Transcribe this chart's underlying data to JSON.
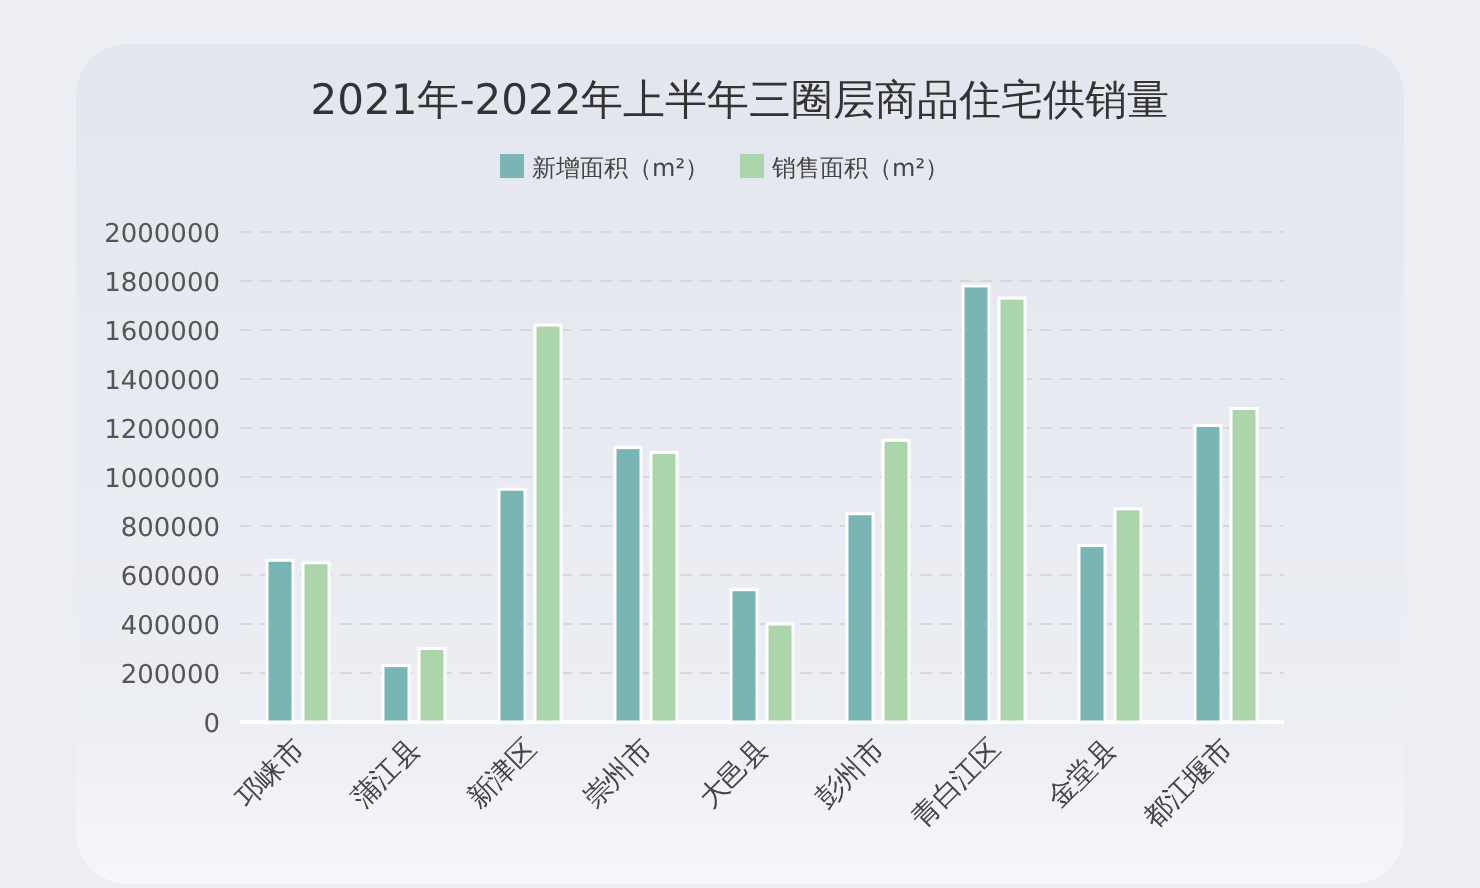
{
  "chart_data": {
    "type": "bar",
    "title": "2021年-2022年上半年三圈层商品住宅供销量",
    "categories": [
      "邛崃市",
      "蒲江县",
      "新津区",
      "崇州市",
      "大邑县",
      "彭州市",
      "青白江区",
      "金堂县",
      "都江堰市"
    ],
    "series": [
      {
        "name": "新增面积（m²）",
        "color": "#7ab5b5",
        "values": [
          660000,
          230000,
          950000,
          1120000,
          540000,
          850000,
          1780000,
          720000,
          1210000
        ]
      },
      {
        "name": "销售面积（m²）",
        "color": "#acd5ab",
        "values": [
          650000,
          300000,
          1620000,
          1100000,
          400000,
          1150000,
          1730000,
          870000,
          1280000
        ]
      }
    ],
    "ylim": [
      0,
      2000000
    ],
    "yticks": [
      0,
      200000,
      400000,
      600000,
      800000,
      1000000,
      1200000,
      1400000,
      1600000,
      1800000,
      2000000
    ],
    "grid": "y",
    "legend": "top"
  }
}
